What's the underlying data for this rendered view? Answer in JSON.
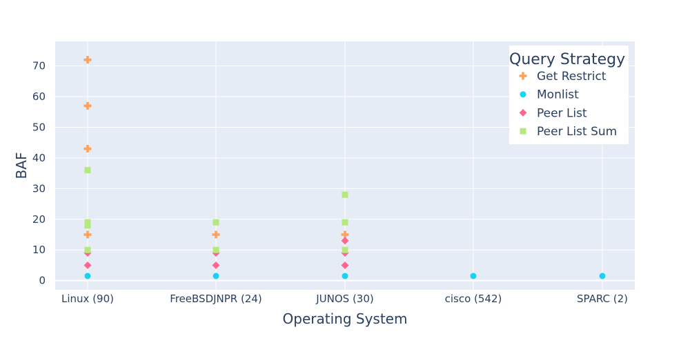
{
  "chart_data": {
    "type": "scatter",
    "title": "",
    "xlabel": "Operating System",
    "ylabel": "BAF",
    "categories": [
      "Linux (90)",
      "FreeBSDJNPR (24)",
      "JUNOS (30)",
      "cisco (542)",
      "SPARC (2)"
    ],
    "ylim": [
      -3,
      78
    ],
    "yticks": [
      0,
      10,
      20,
      30,
      40,
      50,
      60,
      70
    ],
    "grid": true,
    "legend": {
      "title": "Query Strategy",
      "position": "top-right"
    },
    "series": [
      {
        "name": "Get Restrict",
        "marker": "cross",
        "color": "#ffa15a",
        "points": [
          {
            "x": "Linux (90)",
            "y": 72
          },
          {
            "x": "Linux (90)",
            "y": 57
          },
          {
            "x": "Linux (90)",
            "y": 43
          },
          {
            "x": "Linux (90)",
            "y": 15
          },
          {
            "x": "FreeBSDJNPR (24)",
            "y": 15
          },
          {
            "x": "JUNOS (30)",
            "y": 15
          }
        ]
      },
      {
        "name": "Monlist",
        "marker": "circle",
        "color": "#19d3f3",
        "points": [
          {
            "x": "Linux (90)",
            "y": 1.5
          },
          {
            "x": "FreeBSDJNPR (24)",
            "y": 1.5
          },
          {
            "x": "JUNOS (30)",
            "y": 1.5
          },
          {
            "x": "cisco (542)",
            "y": 1.5
          },
          {
            "x": "SPARC (2)",
            "y": 1.5
          }
        ]
      },
      {
        "name": "Peer List",
        "marker": "diamond",
        "color": "#ff6692",
        "points": [
          {
            "x": "Linux (90)",
            "y": 9
          },
          {
            "x": "Linux (90)",
            "y": 5
          },
          {
            "x": "FreeBSDJNPR (24)",
            "y": 9
          },
          {
            "x": "FreeBSDJNPR (24)",
            "y": 5
          },
          {
            "x": "JUNOS (30)",
            "y": 13
          },
          {
            "x": "JUNOS (30)",
            "y": 9
          },
          {
            "x": "JUNOS (30)",
            "y": 5
          }
        ]
      },
      {
        "name": "Peer List Sum",
        "marker": "square",
        "color": "#b6e880",
        "points": [
          {
            "x": "Linux (90)",
            "y": 36
          },
          {
            "x": "Linux (90)",
            "y": 19
          },
          {
            "x": "Linux (90)",
            "y": 18
          },
          {
            "x": "Linux (90)",
            "y": 10
          },
          {
            "x": "FreeBSDJNPR (24)",
            "y": 19
          },
          {
            "x": "FreeBSDJNPR (24)",
            "y": 10
          },
          {
            "x": "JUNOS (30)",
            "y": 28
          },
          {
            "x": "JUNOS (30)",
            "y": 19
          },
          {
            "x": "JUNOS (30)",
            "y": 10
          }
        ]
      }
    ]
  }
}
